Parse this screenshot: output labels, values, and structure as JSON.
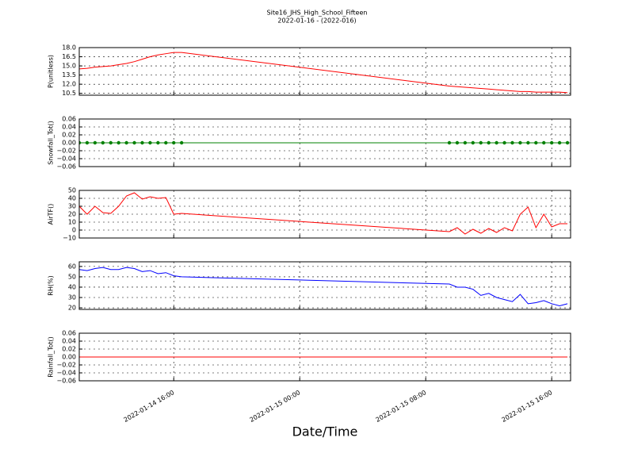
{
  "title": "Site16_JHS_High_School_Fifteen",
  "subtitle": "2022-01-16 - (2022-016)",
  "xlabel": "Date/Time",
  "xlim": [
    "2022-01-14 10:00",
    "2022-01-15 17:12"
  ],
  "xticks": [
    {
      "value": "2022-01-14 16:00",
      "label": "2022-01-14 16:00"
    },
    {
      "value": "2022-01-15 00:00",
      "label": "2022-01-15 00:00"
    },
    {
      "value": "2022-01-15 08:00",
      "label": "2022-01-15 08:00"
    },
    {
      "value": "2022-01-15 16:00",
      "label": "2022-01-15 16:00"
    }
  ],
  "x": [
    "2022-01-14 10:00",
    "2022-01-14 10:30",
    "2022-01-14 11:00",
    "2022-01-14 11:30",
    "2022-01-14 12:00",
    "2022-01-14 12:30",
    "2022-01-14 13:00",
    "2022-01-14 13:30",
    "2022-01-14 14:00",
    "2022-01-14 14:30",
    "2022-01-14 15:00",
    "2022-01-14 15:30",
    "2022-01-14 16:00",
    "2022-01-14 16:30",
    "2022-01-15 09:30",
    "2022-01-15 10:00",
    "2022-01-15 10:30",
    "2022-01-15 11:00",
    "2022-01-15 11:30",
    "2022-01-15 12:00",
    "2022-01-15 12:30",
    "2022-01-15 13:00",
    "2022-01-15 13:30",
    "2022-01-15 14:00",
    "2022-01-15 14:30",
    "2022-01-15 15:00",
    "2022-01-15 15:30",
    "2022-01-15 16:00",
    "2022-01-15 16:30",
    "2022-01-15 17:00"
  ],
  "chart_data": [
    {
      "type": "line",
      "ylabel": "P(unitless)",
      "color": "#ff0000",
      "grid": true,
      "ylim": [
        10.2,
        18.0
      ],
      "yticks": [
        {
          "value": 10.5,
          "label": "10.5"
        },
        {
          "value": 12.0,
          "label": "12.0"
        },
        {
          "value": 13.5,
          "label": "13.5"
        },
        {
          "value": 15.0,
          "label": "15.0"
        },
        {
          "value": 16.5,
          "label": "16.5"
        },
        {
          "value": 18.0,
          "label": "18.0"
        }
      ],
      "values": [
        14.5,
        14.6,
        14.8,
        14.9,
        15.0,
        15.2,
        15.4,
        15.7,
        16.1,
        16.5,
        16.8,
        17.0,
        17.2,
        17.2,
        11.7,
        11.6,
        11.5,
        11.4,
        11.3,
        11.2,
        11.1,
        11.0,
        10.9,
        10.8,
        10.8,
        10.7,
        10.7,
        10.7,
        10.7,
        10.6
      ]
    },
    {
      "type": "line",
      "ylabel": "Snowfall_Tot()",
      "color": "#008000",
      "markers": true,
      "grid": true,
      "ylim": [
        -0.06,
        0.06
      ],
      "yticks": [
        {
          "value": -0.06,
          "label": "−0.06"
        },
        {
          "value": -0.04,
          "label": "−0.04"
        },
        {
          "value": -0.02,
          "label": "−0.02"
        },
        {
          "value": 0,
          "label": "0.00"
        },
        {
          "value": 0.02,
          "label": "0.02"
        },
        {
          "value": 0.04,
          "label": "0.04"
        },
        {
          "value": 0.06,
          "label": "0.06"
        }
      ],
      "values": [
        0,
        0,
        0,
        0,
        0,
        0,
        0,
        0,
        0,
        0,
        0,
        0,
        0,
        0,
        0,
        0,
        0,
        0,
        0,
        0,
        0,
        0,
        0,
        0,
        0,
        0,
        0,
        0,
        0,
        0
      ]
    },
    {
      "type": "line",
      "ylabel": "AirTF()",
      "color": "#ff0000",
      "grid": true,
      "ylim": [
        -10,
        50
      ],
      "yticks": [
        {
          "value": -10,
          "label": "−10"
        },
        0,
        10,
        20,
        30,
        40,
        50
      ],
      "values": [
        30,
        20,
        30,
        22,
        21,
        30,
        43,
        47,
        39,
        42,
        40,
        41,
        20,
        21,
        -2,
        3,
        -5,
        1,
        -4,
        2,
        -3,
        3,
        -1,
        20,
        29,
        3,
        20,
        4,
        8,
        8
      ]
    },
    {
      "type": "line",
      "ylabel": "RH(%)",
      "color": "#0000ff",
      "grid": true,
      "ylim": [
        18.5,
        64.5
      ],
      "yticks": [
        20,
        30,
        40,
        50,
        60
      ],
      "values": [
        57,
        56,
        58,
        59,
        57,
        57,
        59,
        58,
        55,
        56,
        53,
        54,
        51,
        50,
        43,
        40,
        40,
        38,
        32,
        34,
        30,
        28,
        26,
        33,
        24,
        25,
        27,
        24,
        22,
        24
      ]
    },
    {
      "type": "line",
      "ylabel": "Rainfall_Tot()",
      "color": "#ff0000",
      "grid": true,
      "ylim": [
        -0.06,
        0.06
      ],
      "yticks": [
        {
          "value": -0.06,
          "label": "−0.06"
        },
        {
          "value": -0.04,
          "label": "−0.04"
        },
        {
          "value": -0.02,
          "label": "−0.02"
        },
        {
          "value": 0,
          "label": "0.00"
        },
        {
          "value": 0.02,
          "label": "0.02"
        },
        {
          "value": 0.04,
          "label": "0.04"
        },
        {
          "value": 0.06,
          "label": "0.06"
        }
      ],
      "values": [
        0,
        0,
        0,
        0,
        0,
        0,
        0,
        0,
        0,
        0,
        0,
        0,
        0,
        0,
        0,
        0,
        0,
        0,
        0,
        0,
        0,
        0,
        0,
        0,
        0,
        0,
        0,
        0,
        0,
        0
      ]
    }
  ]
}
